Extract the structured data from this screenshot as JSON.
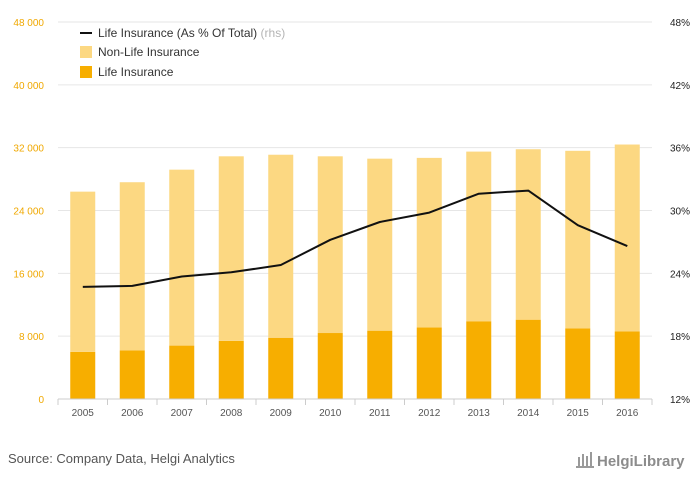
{
  "chart_data": {
    "type": "bar",
    "stacked": true,
    "categories": [
      "2005",
      "2006",
      "2007",
      "2008",
      "2009",
      "2010",
      "2011",
      "2012",
      "2013",
      "2014",
      "2015",
      "2016"
    ],
    "series": [
      {
        "name": "Life Insurance",
        "kind": "bar",
        "axis": "left",
        "color": "#f7ae00",
        "values": [
          6000,
          6200,
          6800,
          7400,
          7800,
          8400,
          8700,
          9100,
          9900,
          10100,
          9000,
          8600
        ]
      },
      {
        "name": "Non-Life Insurance",
        "kind": "bar",
        "axis": "left",
        "color": "#fcd882",
        "values": [
          20400,
          21400,
          22400,
          23500,
          23300,
          22500,
          21900,
          21600,
          21600,
          21700,
          22600,
          23800
        ]
      },
      {
        "name": "Life Insurance (As % Of Total)",
        "suffix": "(rhs)",
        "kind": "line",
        "axis": "right",
        "color": "#111111",
        "values": [
          22.7,
          22.8,
          23.7,
          24.1,
          24.8,
          27.2,
          28.9,
          29.8,
          31.6,
          31.9,
          28.6,
          26.6
        ]
      }
    ],
    "y_left": {
      "min": 0,
      "max": 48000,
      "ticks": [
        "0",
        "8 000",
        "16 000",
        "24 000",
        "32 000",
        "40 000",
        "48 000"
      ],
      "color": "#f0a800"
    },
    "y_right": {
      "min": 12,
      "max": 48,
      "ticks": [
        "12%",
        "18%",
        "24%",
        "30%",
        "36%",
        "42%",
        "48%"
      ]
    },
    "grid": true,
    "legend_position": "top-left"
  },
  "source": "Source: Company Data, Helgi Analytics",
  "logo": "HelgiLibrary"
}
